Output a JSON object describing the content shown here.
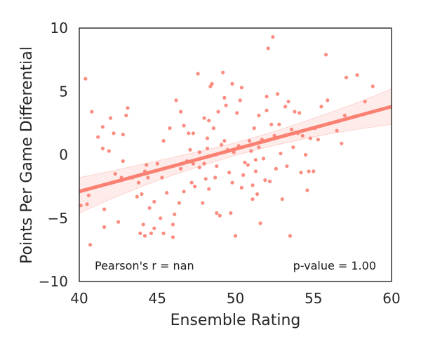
{
  "chart_data": {
    "type": "scatter",
    "xlabel": "Ensemble Rating",
    "ylabel": "Points Per Game Differential",
    "xlim": [
      40,
      60
    ],
    "ylim": [
      -10,
      10
    ],
    "xticks": [
      40,
      45,
      50,
      55,
      60
    ],
    "yticks": [
      -10,
      -5,
      0,
      5,
      10
    ],
    "x_tick_labels": [
      "40",
      "45",
      "50",
      "55",
      "60"
    ],
    "y_tick_labels": [
      "−10",
      "−5",
      "0",
      "5",
      "10"
    ],
    "grid": false,
    "annotations": {
      "pearson": "Pearson's r = nan",
      "pvalue": "p-value = 1.00"
    },
    "colors": {
      "points": "#fa8072",
      "line": "#fa8072",
      "band": "#fa8072"
    },
    "regression": {
      "x": [
        40,
        42,
        44,
        46,
        48,
        50,
        52,
        54,
        56,
        58,
        60
      ],
      "y": [
        -2.9,
        -2.23,
        -1.56,
        -0.89,
        -0.22,
        0.45,
        1.12,
        1.79,
        2.46,
        3.13,
        3.8
      ],
      "ci_lower": [
        -4.6,
        -3.5,
        -2.5,
        -1.6,
        -0.8,
        -0.05,
        0.6,
        1.15,
        1.65,
        2.05,
        2.4
      ],
      "ci_upper": [
        -1.8,
        -1.3,
        -0.75,
        -0.2,
        0.35,
        0.95,
        1.65,
        2.45,
        3.3,
        4.2,
        5.2
      ]
    },
    "points": [
      [
        40.1,
        -4.0
      ],
      [
        40.5,
        -3.9
      ],
      [
        40.6,
        -3.2
      ],
      [
        40.7,
        -7.1
      ],
      [
        40.8,
        3.4
      ],
      [
        40.4,
        6.0
      ],
      [
        41.2,
        1.4
      ],
      [
        41.5,
        2.2
      ],
      [
        41.5,
        0.5
      ],
      [
        41.6,
        -4.3
      ],
      [
        41.6,
        -5.7
      ],
      [
        41.9,
        0.3
      ],
      [
        42.0,
        2.9
      ],
      [
        42.2,
        1.7
      ],
      [
        42.3,
        -1.5
      ],
      [
        42.5,
        -5.3
      ],
      [
        42.7,
        -1.8
      ],
      [
        42.8,
        -0.5
      ],
      [
        42.8,
        1.6
      ],
      [
        43.0,
        3.1
      ],
      [
        43.1,
        3.7
      ],
      [
        43.4,
        -1.8
      ],
      [
        43.7,
        -3.3
      ],
      [
        43.8,
        -2.2
      ],
      [
        43.9,
        -6.2
      ],
      [
        44.0,
        -3.1
      ],
      [
        44.1,
        -5.5
      ],
      [
        44.2,
        -6.4
      ],
      [
        44.2,
        -1.3
      ],
      [
        44.3,
        -0.8
      ],
      [
        44.4,
        -1.8
      ],
      [
        44.5,
        -4.2
      ],
      [
        44.6,
        -6.2
      ],
      [
        44.8,
        -5.8
      ],
      [
        44.8,
        -3.7
      ],
      [
        45.0,
        -0.7
      ],
      [
        45.2,
        -5.0
      ],
      [
        45.3,
        -1.8
      ],
      [
        45.4,
        1.1
      ],
      [
        45.4,
        -6.2
      ],
      [
        45.6,
        -3.0
      ],
      [
        45.8,
        2.1
      ],
      [
        46.0,
        -6.5
      ],
      [
        46.0,
        -5.5
      ],
      [
        46.1,
        -4.7
      ],
      [
        46.2,
        4.3
      ],
      [
        46.4,
        -3.8
      ],
      [
        46.5,
        -1.1
      ],
      [
        46.5,
        3.4
      ],
      [
        46.7,
        -2.9
      ],
      [
        46.7,
        2.3
      ],
      [
        46.9,
        -0.5
      ],
      [
        47.0,
        1.7
      ],
      [
        47.1,
        0.4
      ],
      [
        47.2,
        -2.2
      ],
      [
        47.3,
        1.7
      ],
      [
        47.3,
        -0.7
      ],
      [
        47.4,
        -2.5
      ],
      [
        47.6,
        6.4
      ],
      [
        47.7,
        -1.0
      ],
      [
        47.7,
        0.2
      ],
      [
        47.9,
        -3.8
      ],
      [
        48.0,
        -0.7
      ],
      [
        48.0,
        2.9
      ],
      [
        48.1,
        -1.9
      ],
      [
        48.2,
        1.3
      ],
      [
        48.2,
        0.5
      ],
      [
        48.3,
        2.7
      ],
      [
        48.3,
        -2.7
      ],
      [
        48.4,
        5.4
      ],
      [
        48.4,
        -0.1
      ],
      [
        48.5,
        5.6
      ],
      [
        48.6,
        2.1
      ],
      [
        48.7,
        -1.8
      ],
      [
        48.8,
        -4.6
      ],
      [
        48.8,
        -0.9
      ],
      [
        48.9,
        3.4
      ],
      [
        49.0,
        -4.8
      ],
      [
        49.1,
        0.8
      ],
      [
        49.2,
        6.5
      ],
      [
        49.3,
        1.1
      ],
      [
        49.3,
        4.5
      ],
      [
        49.4,
        3.9
      ],
      [
        49.5,
        0.4
      ],
      [
        49.6,
        -1.4
      ],
      [
        49.7,
        -4.6
      ],
      [
        49.8,
        5.6
      ],
      [
        49.8,
        -2.2
      ],
      [
        49.9,
        0.2
      ],
      [
        50.0,
        -6.4
      ],
      [
        50.1,
        3.3
      ],
      [
        50.2,
        0.7
      ],
      [
        50.3,
        4.3
      ],
      [
        50.4,
        5.3
      ],
      [
        50.4,
        -2.6
      ],
      [
        50.5,
        -1.6
      ],
      [
        50.6,
        -0.6
      ],
      [
        50.8,
        -0.8
      ],
      [
        50.9,
        1.1
      ],
      [
        51.0,
        0.3
      ],
      [
        51.1,
        -2.4
      ],
      [
        51.1,
        -3.5
      ],
      [
        51.2,
        2.1
      ],
      [
        51.3,
        -0.4
      ],
      [
        51.3,
        -1.3
      ],
      [
        51.4,
        -3.1
      ],
      [
        51.5,
        3.1
      ],
      [
        51.5,
        0.6
      ],
      [
        51.6,
        -5.4
      ],
      [
        51.7,
        1.2
      ],
      [
        51.8,
        -0.3
      ],
      [
        51.9,
        -2.0
      ],
      [
        52.0,
        3.5
      ],
      [
        52.0,
        4.6
      ],
      [
        52.1,
        8.4
      ],
      [
        52.2,
        -2.1
      ],
      [
        52.3,
        2.4
      ],
      [
        52.4,
        9.3
      ],
      [
        52.5,
        1.5
      ],
      [
        52.6,
        -1.1
      ],
      [
        52.7,
        4.8
      ],
      [
        52.8,
        2.4
      ],
      [
        52.9,
        0.1
      ],
      [
        53.0,
        -3.5
      ],
      [
        53.2,
        3.8
      ],
      [
        53.3,
        -0.9
      ],
      [
        53.4,
        4.2
      ],
      [
        53.5,
        -6.4
      ],
      [
        53.6,
        2.0
      ],
      [
        53.7,
        0.6
      ],
      [
        53.8,
        3.4
      ],
      [
        54.0,
        1.7
      ],
      [
        54.1,
        3.3
      ],
      [
        54.2,
        -1.4
      ],
      [
        54.3,
        1.5
      ],
      [
        54.5,
        0.0
      ],
      [
        54.6,
        -2.8
      ],
      [
        54.7,
        -1.3
      ],
      [
        54.8,
        1.3
      ],
      [
        55.0,
        -1.3
      ],
      [
        55.1,
        2.1
      ],
      [
        55.3,
        1.2
      ],
      [
        55.5,
        3.8
      ],
      [
        55.8,
        7.9
      ],
      [
        55.9,
        4.3
      ],
      [
        56.5,
        1.9
      ],
      [
        56.8,
        0.9
      ],
      [
        57.0,
        3.1
      ],
      [
        57.1,
        6.1
      ],
      [
        57.8,
        6.3
      ],
      [
        58.3,
        4.2
      ],
      [
        58.8,
        5.4
      ]
    ]
  }
}
